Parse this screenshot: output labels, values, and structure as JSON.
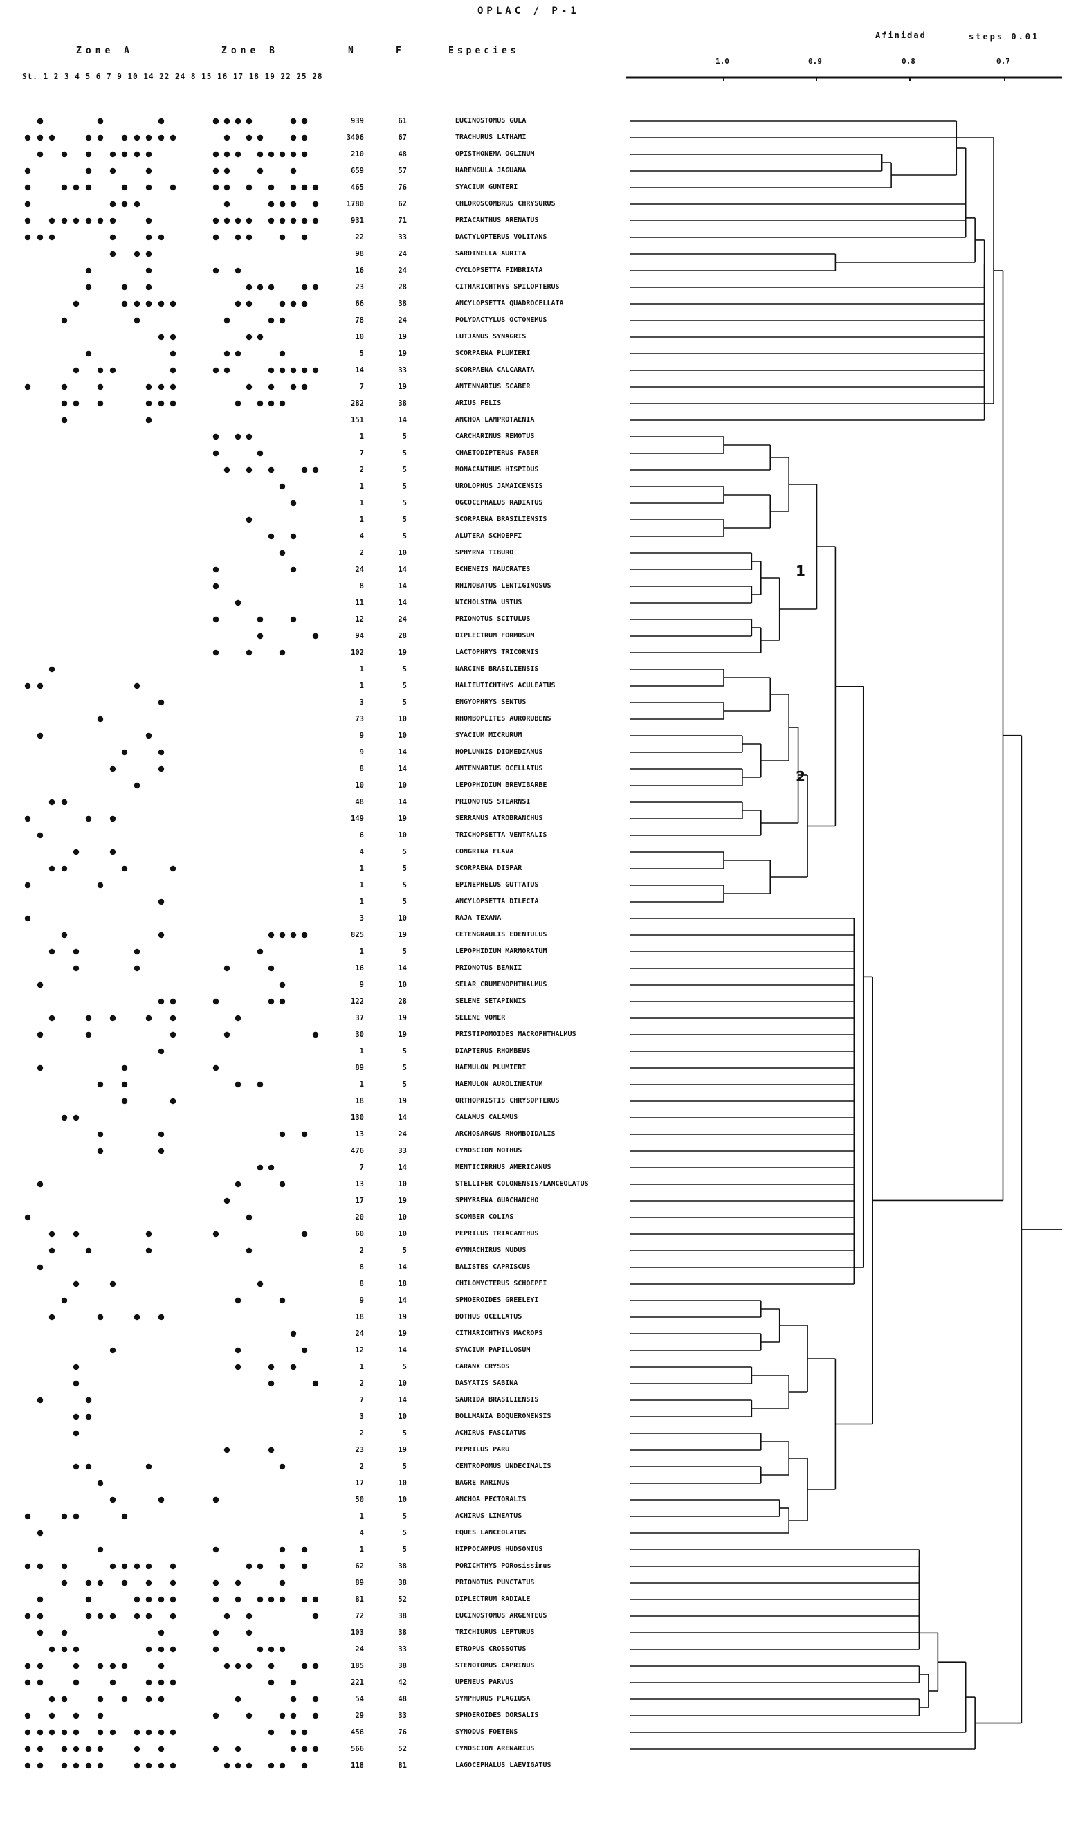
{
  "title": "OPLAC / P-1",
  "headers": {
    "zone_a": "Zone A",
    "zone_b": "Zone B",
    "n": "N",
    "f": "F",
    "species": "Especies",
    "affinity": "Afinidad",
    "steps": "steps 0.01",
    "stations": "St. 1 2 3 4 5 6 7 9 10 14 22 24     8 15 16 17 18 19 22 25 28"
  },
  "scale_ticks": [
    "1.0",
    "0.9",
    "0.8",
    "0.7"
  ],
  "cluster_labels": [
    "1",
    "2"
  ],
  "species_rows": [
    {
      "n": "939",
      "f": "61",
      "name": "EUCINOSTOMUS GULA"
    },
    {
      "n": "3406",
      "f": "67",
      "name": "TRACHURUS LATHAMI"
    },
    {
      "n": "210",
      "f": "48",
      "name": "OPISTHONEMA OGLINUM"
    },
    {
      "n": "659",
      "f": "57",
      "name": "HARENGULA JAGUANA"
    },
    {
      "n": "465",
      "f": "76",
      "name": "SYACIUM GUNTERI"
    },
    {
      "n": "1780",
      "f": "62",
      "name": "CHLOROSCOMBRUS CHRYSURUS"
    },
    {
      "n": "931",
      "f": "71",
      "name": "PRIACANTHUS ARENATUS"
    },
    {
      "n": "22",
      "f": "33",
      "name": "DACTYLOPTERUS VOLITANS"
    },
    {
      "n": "98",
      "f": "24",
      "name": "SARDINELLA AURITA"
    },
    {
      "n": "16",
      "f": "24",
      "name": "CYCLOPSETTA FIMBRIATA"
    },
    {
      "n": "23",
      "f": "28",
      "name": "CITHARICHTHYS SPILOPTERUS"
    },
    {
      "n": "66",
      "f": "38",
      "name": "ANCYLOPSETTA QUADROCELLATA"
    },
    {
      "n": "78",
      "f": "24",
      "name": "POLYDACTYLUS OCTONEMUS"
    },
    {
      "n": "10",
      "f": "19",
      "name": "LUTJANUS SYNAGRIS"
    },
    {
      "n": "5",
      "f": "19",
      "name": "SCORPAENA PLUMIERI"
    },
    {
      "n": "14",
      "f": "33",
      "name": "SCORPAENA CALCARATA"
    },
    {
      "n": "7",
      "f": "19",
      "name": "ANTENNARIUS SCABER"
    },
    {
      "n": "282",
      "f": "38",
      "name": "ARIUS FELIS"
    },
    {
      "n": "151",
      "f": "14",
      "name": "ANCHOA LAMPROTAENIA"
    },
    {
      "n": "1",
      "f": "5",
      "name": "CARCHARINUS REMOTUS"
    },
    {
      "n": "7",
      "f": "5",
      "name": "CHAETODIPTERUS FABER"
    },
    {
      "n": "2",
      "f": "5",
      "name": "MONACANTHUS HISPIDUS"
    },
    {
      "n": "1",
      "f": "5",
      "name": "UROLOPHUS JAMAICENSIS"
    },
    {
      "n": "1",
      "f": "5",
      "name": "OGCOCEPHALUS RADIATUS"
    },
    {
      "n": "1",
      "f": "5",
      "name": "SCORPAENA BRASILIENSIS"
    },
    {
      "n": "4",
      "f": "5",
      "name": "ALUTERA SCHOEPFI"
    },
    {
      "n": "2",
      "f": "10",
      "name": "SPHYRNA TIBURO"
    },
    {
      "n": "24",
      "f": "14",
      "name": "ECHENEIS NAUCRATES"
    },
    {
      "n": "8",
      "f": "14",
      "name": "RHINOBATUS LENTIGINOSUS"
    },
    {
      "n": "11",
      "f": "14",
      "name": "NICHOLSINA USTUS"
    },
    {
      "n": "12",
      "f": "24",
      "name": "PRIONOTUS SCITULUS"
    },
    {
      "n": "94",
      "f": "28",
      "name": "DIPLECTRUM FORMOSUM"
    },
    {
      "n": "102",
      "f": "19",
      "name": "LACTOPHRYS TRICORNIS"
    },
    {
      "n": "1",
      "f": "5",
      "name": "NARCINE BRASILIENSIS"
    },
    {
      "n": "1",
      "f": "5",
      "name": "HALIEUTICHTHYS ACULEATUS"
    },
    {
      "n": "3",
      "f": "5",
      "name": "ENGYOPHRYS SENTUS"
    },
    {
      "n": "73",
      "f": "10",
      "name": "RHOMBOPLITES AURORUBENS"
    },
    {
      "n": "9",
      "f": "10",
      "name": "SYACIUM MICRURUM"
    },
    {
      "n": "9",
      "f": "14",
      "name": "HOPLUNNIS DIOMEDIANUS"
    },
    {
      "n": "8",
      "f": "14",
      "name": "ANTENNARIUS OCELLATUS"
    },
    {
      "n": "10",
      "f": "10",
      "name": "LEPOPHIDIUM BREVIBARBE"
    },
    {
      "n": "48",
      "f": "14",
      "name": "PRIONOTUS STEARNSI"
    },
    {
      "n": "149",
      "f": "19",
      "name": "SERRANUS ATROBRANCHUS"
    },
    {
      "n": "6",
      "f": "10",
      "name": "TRICHOPSETTA VENTRALIS"
    },
    {
      "n": "4",
      "f": "5",
      "name": "CONGRINA FLAVA"
    },
    {
      "n": "1",
      "f": "5",
      "name": "SCORPAENA DISPAR"
    },
    {
      "n": "1",
      "f": "5",
      "name": "EPINEPHELUS GUTTATUS"
    },
    {
      "n": "1",
      "f": "5",
      "name": "ANCYLOPSETTA DILECTA"
    },
    {
      "n": "3",
      "f": "10",
      "name": "RAJA TEXANA"
    },
    {
      "n": "825",
      "f": "19",
      "name": "CETENGRAULIS EDENTULUS"
    },
    {
      "n": "1",
      "f": "5",
      "name": "LEPOPHIDIUM MARMORATUM"
    },
    {
      "n": "16",
      "f": "14",
      "name": "PRIONOTUS BEANII"
    },
    {
      "n": "9",
      "f": "10",
      "name": "SELAR CRUMENOPHTHALMUS"
    },
    {
      "n": "122",
      "f": "28",
      "name": "SELENE SETAPINNIS"
    },
    {
      "n": "37",
      "f": "19",
      "name": "SELENE VOMER"
    },
    {
      "n": "30",
      "f": "19",
      "name": "PRISTIPOMOIDES MACROPHTHALMUS"
    },
    {
      "n": "1",
      "f": "5",
      "name": "DIAPTERUS RHOMBEUS"
    },
    {
      "n": "89",
      "f": "5",
      "name": "HAEMULON PLUMIERI"
    },
    {
      "n": "1",
      "f": "5",
      "name": "HAEMULON AUROLINEATUM"
    },
    {
      "n": "18",
      "f": "19",
      "name": "ORTHOPRISTIS CHRYSOPTERUS"
    },
    {
      "n": "130",
      "f": "14",
      "name": "CALAMUS CALAMUS"
    },
    {
      "n": "13",
      "f": "24",
      "name": "ARCHOSARGUS RHOMBOIDALIS"
    },
    {
      "n": "476",
      "f": "33",
      "name": "CYNOSCION NOTHUS"
    },
    {
      "n": "7",
      "f": "14",
      "name": "MENTICIRRHUS AMERICANUS"
    },
    {
      "n": "13",
      "f": "10",
      "name": "STELLIFER COLONENSIS/LANCEOLATUS"
    },
    {
      "n": "17",
      "f": "19",
      "name": "SPHYRAENA GUACHANCHO"
    },
    {
      "n": "20",
      "f": "10",
      "name": "SCOMBER COLIAS"
    },
    {
      "n": "60",
      "f": "10",
      "name": "PEPRILUS TRIACANTHUS"
    },
    {
      "n": "2",
      "f": "5",
      "name": "GYMNACHIRUS NUDUS"
    },
    {
      "n": "8",
      "f": "14",
      "name": "BALISTES CAPRISCUS"
    },
    {
      "n": "8",
      "f": "18",
      "name": "CHILOMYCTERUS SCHOEPFI"
    },
    {
      "n": "9",
      "f": "14",
      "name": "SPHOEROIDES GREELEYI"
    },
    {
      "n": "18",
      "f": "19",
      "name": "BOTHUS OCELLATUS"
    },
    {
      "n": "24",
      "f": "19",
      "name": "CITHARICHTHYS MACROPS"
    },
    {
      "n": "12",
      "f": "14",
      "name": "SYACIUM PAPILLOSUM"
    },
    {
      "n": "1",
      "f": "5",
      "name": "CARANX CRYSOS"
    },
    {
      "n": "2",
      "f": "10",
      "name": "DASYATIS SABINA"
    },
    {
      "n": "7",
      "f": "14",
      "name": "SAURIDA BRASILIENSIS"
    },
    {
      "n": "3",
      "f": "10",
      "name": "BOLLMANIA BOQUERONENSIS"
    },
    {
      "n": "2",
      "f": "5",
      "name": "ACHIRUS FASCIATUS"
    },
    {
      "n": "23",
      "f": "19",
      "name": "PEPRILUS PARU"
    },
    {
      "n": "2",
      "f": "5",
      "name": "CENTROPOMUS UNDECIMALIS"
    },
    {
      "n": "17",
      "f": "10",
      "name": "BAGRE MARINUS"
    },
    {
      "n": "50",
      "f": "10",
      "name": "ANCHOA PECTORALIS"
    },
    {
      "n": "1",
      "f": "5",
      "name": "ACHIRUS LINEATUS"
    },
    {
      "n": "4",
      "f": "5",
      "name": "EQUES LANCEOLATUS"
    },
    {
      "n": "1",
      "f": "5",
      "name": "HIPPOCAMPUS HUDSONIUS"
    },
    {
      "n": "62",
      "f": "38",
      "name": "PORICHTHYS PORosissimus"
    },
    {
      "n": "89",
      "f": "38",
      "name": "PRIONOTUS PUNCTATUS"
    },
    {
      "n": "81",
      "f": "52",
      "name": "DIPLECTRUM RADIALE"
    },
    {
      "n": "72",
      "f": "38",
      "name": "EUCINOSTOMUS ARGENTEUS"
    },
    {
      "n": "103",
      "f": "38",
      "name": "TRICHIURUS LEPTURUS"
    },
    {
      "n": "24",
      "f": "33",
      "name": "ETROPUS CROSSOTUS"
    },
    {
      "n": "185",
      "f": "38",
      "name": "STENOTOMUS CAPRINUS"
    },
    {
      "n": "221",
      "f": "42",
      "name": "UPENEUS PARVUS"
    },
    {
      "n": "54",
      "f": "48",
      "name": "SYMPHURUS PLAGIUSA"
    },
    {
      "n": "29",
      "f": "33",
      "name": "SPHOEROIDES DORSALIS"
    },
    {
      "n": "456",
      "f": "76",
      "name": "SYNODUS FOETENS"
    },
    {
      "n": "566",
      "f": "52",
      "name": "CYNOSCION ARENARIUS"
    },
    {
      "n": "118",
      "f": "81",
      "name": "LAGOCEPHALUS LAEVIGATUS"
    }
  ]
}
